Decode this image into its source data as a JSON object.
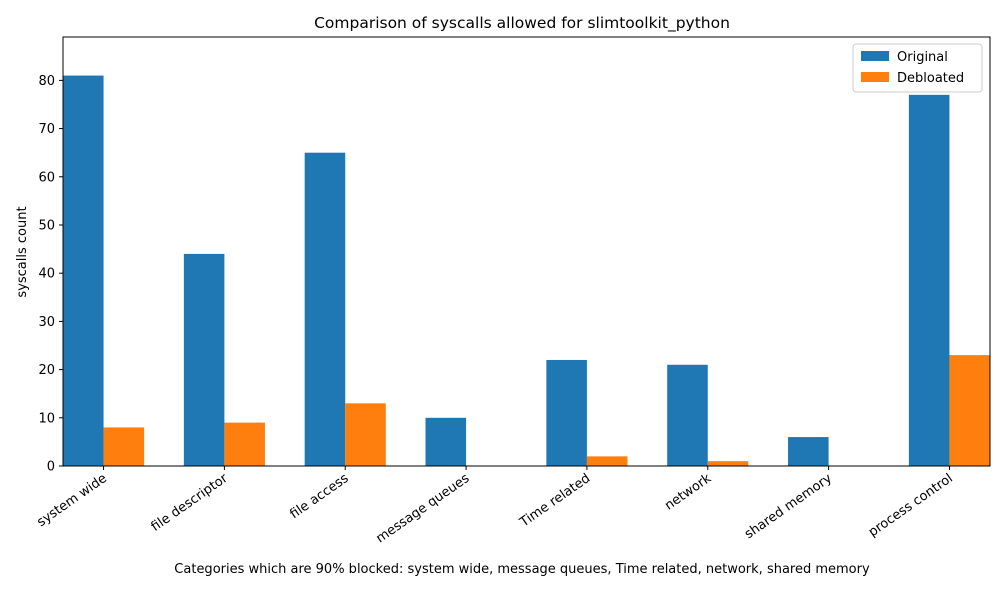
{
  "chart_data": {
    "type": "bar",
    "title": "Comparison of syscalls allowed for slimtoolkit_python",
    "xlabel": "Categories which are 90% blocked: system wide, message queues, Time related, network, shared memory",
    "ylabel": "syscalls count",
    "categories": [
      "system wide",
      "file descriptor",
      "file access",
      "message queues",
      "Time related",
      "network",
      "shared memory",
      "process control"
    ],
    "series": [
      {
        "name": "Original",
        "color": "#1f77b4",
        "values": [
          81,
          44,
          65,
          10,
          22,
          21,
          6,
          77
        ]
      },
      {
        "name": "Debloated",
        "color": "#ff7f0e",
        "values": [
          8,
          9,
          13,
          0,
          2,
          1,
          0,
          23
        ]
      }
    ],
    "ylim": [
      0,
      89
    ],
    "yticks": [
      0,
      10,
      20,
      30,
      40,
      50,
      60,
      70,
      80
    ],
    "grid": false,
    "legend": "top-right"
  }
}
